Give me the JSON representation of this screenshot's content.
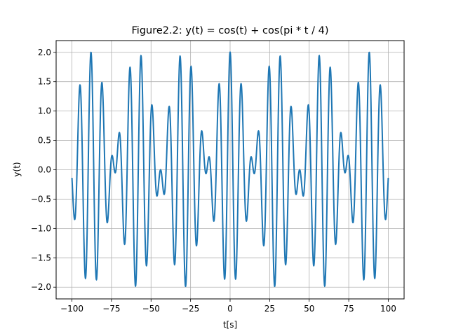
{
  "chart_data": {
    "type": "line",
    "title": "Figure2.2: y(t) = cos(t) + cos(pi * t / 4)",
    "xlabel": "t[s]",
    "ylabel": "y(t)",
    "xlim": [
      -110,
      110
    ],
    "ylim": [
      -2.2,
      2.2
    ],
    "x_ticks": [
      -100,
      -75,
      -50,
      -25,
      0,
      25,
      50,
      75,
      100
    ],
    "x_tick_labels": [
      "−100",
      "−75",
      "−50",
      "−25",
      "0",
      "25",
      "50",
      "75",
      "100"
    ],
    "y_ticks": [
      -2.0,
      -1.5,
      -1.0,
      -0.5,
      0.0,
      0.5,
      1.0,
      1.5,
      2.0
    ],
    "y_tick_labels": [
      "−2.0",
      "−1.5",
      "−1.0",
      "−0.5",
      "0.0",
      "0.5",
      "1.0",
      "1.5",
      "2.0"
    ],
    "grid": true,
    "series": [
      {
        "function": "cos(t) + cos(pi * t / 4)",
        "t_range": [
          -100,
          100
        ],
        "color": "#1f77b4"
      }
    ]
  }
}
